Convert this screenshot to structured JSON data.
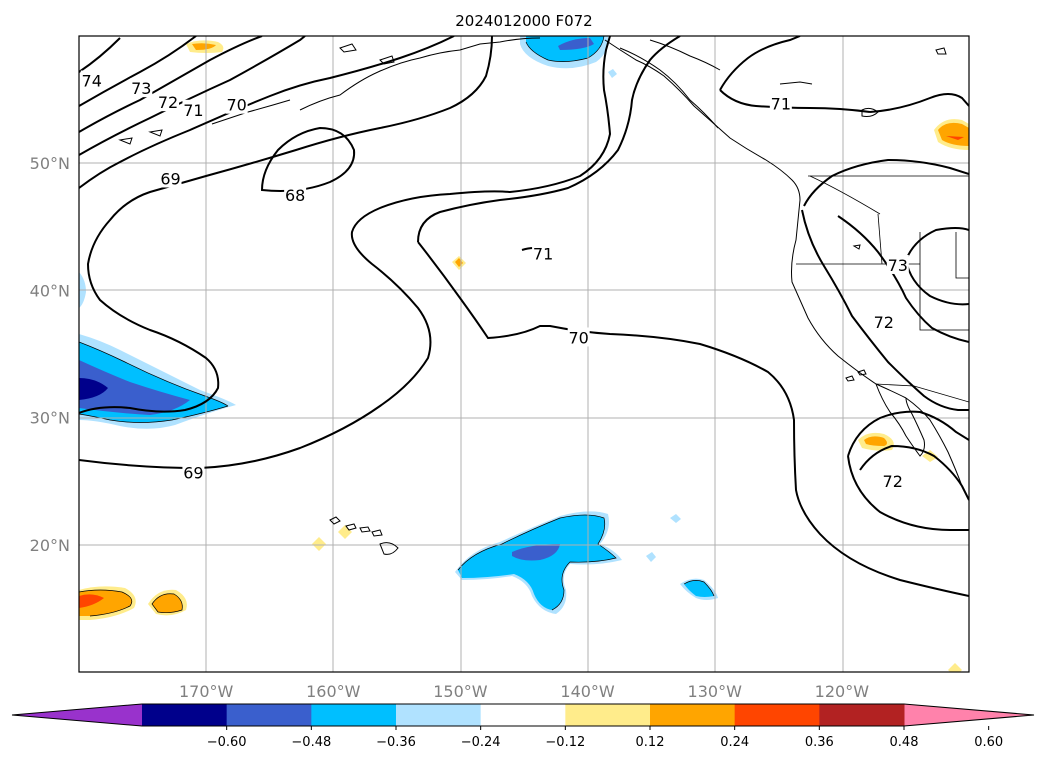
{
  "title": "2024012000 F072",
  "lat_labels": [
    {
      "text": "50°N",
      "lat": 50
    },
    {
      "text": "40°N",
      "lat": 40
    },
    {
      "text": "30°N",
      "lat": 30
    },
    {
      "text": "20°N",
      "lat": 20
    }
  ],
  "lon_labels": [
    {
      "text": "170°W",
      "lon": -170
    },
    {
      "text": "160°W",
      "lon": -160
    },
    {
      "text": "150°W",
      "lon": -150
    },
    {
      "text": "140°W",
      "lon": -140
    },
    {
      "text": "130°W",
      "lon": -130
    },
    {
      "text": "120°W",
      "lon": -120
    }
  ],
  "contour_labels": [
    {
      "text": "74",
      "lon": -179,
      "lat": 56.5
    },
    {
      "text": "73",
      "lon": -175.1,
      "lat": 55.9
    },
    {
      "text": "72",
      "lon": -173,
      "lat": 54.8
    },
    {
      "text": "71",
      "lon": -171,
      "lat": 54.2
    },
    {
      "text": "70",
      "lon": -167.6,
      "lat": 54.6
    },
    {
      "text": "69",
      "lon": -172.8,
      "lat": 48.8
    },
    {
      "text": "68",
      "lon": -163,
      "lat": 47.5
    },
    {
      "text": "71",
      "lon": -143.5,
      "lat": 42.9
    },
    {
      "text": "70",
      "lon": -140.7,
      "lat": 36.3
    },
    {
      "text": "69",
      "lon": -171,
      "lat": 25.7
    },
    {
      "text": "71",
      "lon": -124.8,
      "lat": 54.7
    },
    {
      "text": "73",
      "lon": -115.6,
      "lat": 42.0
    },
    {
      "text": "72",
      "lon": -116.7,
      "lat": 37.5
    },
    {
      "text": "72",
      "lon": -116,
      "lat": 25.0
    }
  ],
  "colorbar": {
    "ticks": [
      "−0.60",
      "−0.48",
      "−0.36",
      "−0.24",
      "−0.12",
      "0.12",
      "0.24",
      "0.36",
      "0.48",
      "0.60"
    ],
    "colors": [
      "#9932cc",
      "#00008b",
      "#3a5fcd",
      "#00bfff",
      "#b0e2ff",
      "#ffffff",
      "#ffec8b",
      "#ffa500",
      "#ff4500",
      "#b22222",
      "#ff82ab"
    ]
  }
}
